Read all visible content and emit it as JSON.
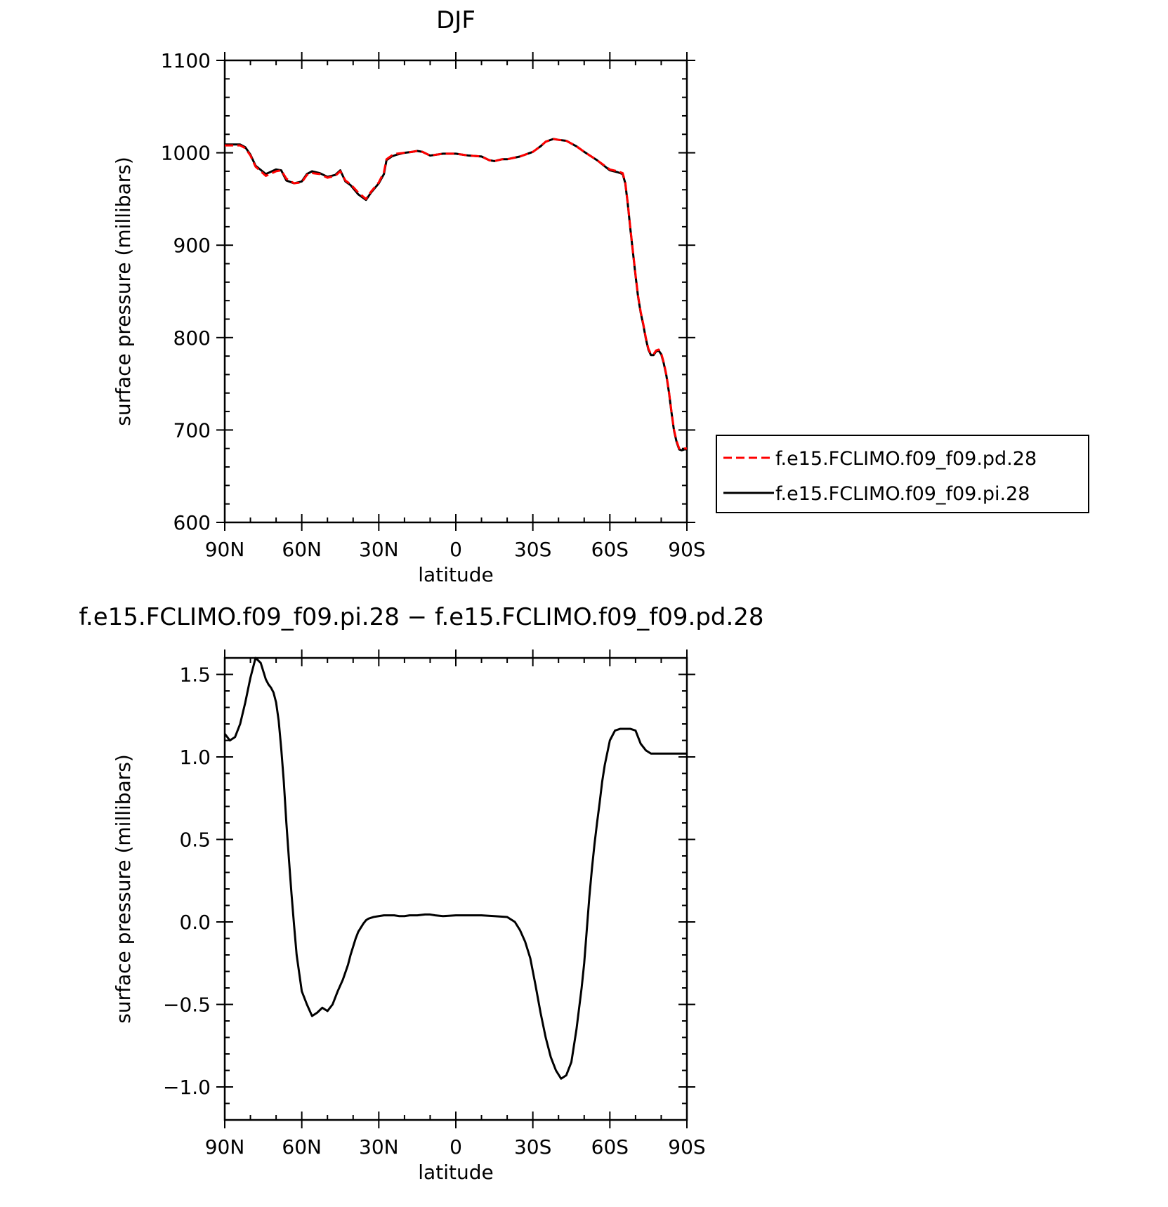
{
  "chart_data": [
    {
      "type": "line",
      "title": "DJF",
      "xlabel": "latitude",
      "ylabel": "surface pressure (millibars)",
      "xlim": [
        -90,
        90
      ],
      "ylim": [
        600,
        1100
      ],
      "xticks": [
        {
          "value": -90,
          "label": "90N"
        },
        {
          "value": -60,
          "label": "60N"
        },
        {
          "value": -30,
          "label": "30N"
        },
        {
          "value": 0,
          "label": "0"
        },
        {
          "value": 30,
          "label": "30S"
        },
        {
          "value": 60,
          "label": "60S"
        },
        {
          "value": 90,
          "label": "90S"
        }
      ],
      "yticks": [
        {
          "value": 600,
          "label": "600"
        },
        {
          "value": 700,
          "label": "700"
        },
        {
          "value": 800,
          "label": "800"
        },
        {
          "value": 900,
          "label": "900"
        },
        {
          "value": 1000,
          "label": "1000"
        },
        {
          "value": 1100,
          "label": "1100"
        }
      ],
      "legend_position": "right",
      "series": [
        {
          "name": "f.e15.FCLIMO.f09_f09.pd.28",
          "color": "#ff0000",
          "style": "dashed",
          "x": [
            -90,
            -84,
            -82,
            -80,
            -78,
            -74,
            -70,
            -68,
            -66,
            -63,
            -60,
            -58,
            -56,
            -53,
            -50,
            -47,
            -45,
            -43,
            -41,
            -38,
            -35,
            -33,
            -30,
            -28,
            -27,
            -25,
            -23,
            -20,
            -17,
            -15,
            -13,
            -10,
            -5,
            0,
            5,
            10,
            13,
            15,
            18,
            20,
            25,
            30,
            33,
            35,
            38,
            40,
            43,
            47,
            50,
            55,
            60,
            63,
            65,
            66,
            67,
            68,
            69,
            70,
            71,
            72,
            73,
            74,
            75,
            76,
            77,
            78,
            79,
            80,
            81,
            82,
            83,
            84,
            85,
            86,
            87,
            88,
            89,
            90
          ],
          "y": [
            1008,
            1008,
            1005,
            997,
            985,
            975,
            980,
            981,
            972,
            967,
            968,
            976,
            978,
            977,
            973,
            975,
            980,
            970,
            966,
            957,
            950,
            958,
            968,
            979,
            993,
            997,
            999,
            1000,
            1001,
            1002,
            1001,
            997,
            999,
            999,
            997,
            996,
            992,
            991,
            993,
            993,
            996,
            1001,
            1007,
            1012,
            1015,
            1014,
            1013,
            1007,
            1001,
            992,
            982,
            980,
            978,
            968,
            945,
            918,
            893,
            868,
            845,
            828,
            815,
            800,
            788,
            782,
            782,
            786,
            787,
            783,
            773,
            760,
            742,
            720,
            700,
            688,
            680,
            679,
            680,
            680
          ]
        },
        {
          "name": "f.e15.FCLIMO.f09_f09.pi.28",
          "color": "#000000",
          "style": "solid",
          "x": [
            -90,
            -84,
            -82,
            -80,
            -78,
            -74,
            -70,
            -68,
            -66,
            -63,
            -60,
            -58,
            -56,
            -53,
            -50,
            -47,
            -45,
            -43,
            -41,
            -38,
            -35,
            -33,
            -30,
            -28,
            -27,
            -25,
            -23,
            -20,
            -17,
            -15,
            -13,
            -10,
            -5,
            0,
            5,
            10,
            13,
            15,
            18,
            20,
            25,
            30,
            33,
            35,
            38,
            40,
            43,
            47,
            50,
            55,
            60,
            63,
            65,
            66,
            67,
            68,
            69,
            70,
            71,
            72,
            73,
            74,
            75,
            76,
            77,
            78,
            79,
            80,
            81,
            82,
            83,
            84,
            85,
            86,
            87,
            88,
            89,
            90
          ],
          "y": [
            1009,
            1009,
            1006,
            998,
            986,
            977,
            982,
            981,
            970,
            967,
            969,
            977,
            980,
            978,
            974,
            976,
            981,
            969,
            965,
            955,
            949,
            957,
            967,
            977,
            992,
            996,
            998,
            1000,
            1001,
            1002,
            1001,
            997,
            999,
            999,
            997,
            996,
            992,
            991,
            993,
            993,
            996,
            1001,
            1007,
            1012,
            1015,
            1014,
            1013,
            1007,
            1001,
            992,
            981,
            979,
            977,
            967,
            944,
            917,
            892,
            867,
            844,
            827,
            814,
            799,
            787,
            781,
            781,
            785,
            786,
            782,
            772,
            759,
            741,
            719,
            699,
            687,
            679,
            678,
            679,
            679
          ]
        }
      ]
    },
    {
      "type": "line",
      "title": "f.e15.FCLIMO.f09_f09.pi.28 − f.e15.FCLIMO.f09_f09.pd.28",
      "xlabel": "latitude",
      "ylabel": "surface pressure (millibars)",
      "xlim": [
        -90,
        90
      ],
      "ylim": [
        -1.2,
        1.6
      ],
      "xticks": [
        {
          "value": -90,
          "label": "90N"
        },
        {
          "value": -60,
          "label": "60N"
        },
        {
          "value": -30,
          "label": "30N"
        },
        {
          "value": 0,
          "label": "0"
        },
        {
          "value": 30,
          "label": "30S"
        },
        {
          "value": 60,
          "label": "60S"
        },
        {
          "value": 90,
          "label": "90S"
        }
      ],
      "yticks": [
        {
          "value": -1.0,
          "label": "−1.0"
        },
        {
          "value": -0.5,
          "label": "−0.5"
        },
        {
          "value": 0.0,
          "label": "0.0"
        },
        {
          "value": 0.5,
          "label": "0.5"
        },
        {
          "value": 1.0,
          "label": "1.0"
        },
        {
          "value": 1.5,
          "label": "1.5"
        }
      ],
      "series": [
        {
          "color": "#000000",
          "style": "solid",
          "x": [
            -90,
            -88,
            -86,
            -84,
            -82,
            -80,
            -78,
            -76,
            -74,
            -73,
            -72,
            -71,
            -70,
            -69,
            -68,
            -67,
            -66,
            -65,
            -64,
            -63,
            -62,
            -60,
            -58,
            -56,
            -54,
            -52,
            -50,
            -48,
            -46,
            -44,
            -42,
            -41,
            -40,
            -39,
            -38,
            -36,
            -35,
            -34,
            -32,
            -30,
            -28,
            -26,
            -24,
            -22,
            -20,
            -18,
            -15,
            -12,
            -10,
            -8,
            -5,
            0,
            5,
            10,
            15,
            20,
            23,
            25,
            27,
            29,
            31,
            33,
            35,
            37,
            39,
            41,
            43,
            45,
            47,
            49,
            50,
            51,
            52,
            53,
            54,
            55,
            56,
            57,
            58,
            60,
            62,
            64,
            66,
            68,
            70,
            71,
            72,
            74,
            76,
            78,
            80,
            82,
            84,
            86,
            88,
            90
          ],
          "y": [
            1.14,
            1.1,
            1.12,
            1.2,
            1.33,
            1.48,
            1.6,
            1.57,
            1.47,
            1.44,
            1.42,
            1.39,
            1.33,
            1.22,
            1.05,
            0.85,
            0.6,
            0.38,
            0.17,
            -0.02,
            -0.2,
            -0.42,
            -0.5,
            -0.57,
            -0.55,
            -0.52,
            -0.54,
            -0.5,
            -0.42,
            -0.35,
            -0.26,
            -0.2,
            -0.15,
            -0.1,
            -0.06,
            -0.01,
            0.01,
            0.02,
            0.03,
            0.035,
            0.04,
            0.04,
            0.04,
            0.035,
            0.035,
            0.04,
            0.04,
            0.045,
            0.045,
            0.04,
            0.035,
            0.04,
            0.04,
            0.04,
            0.035,
            0.03,
            0.0,
            -0.05,
            -0.12,
            -0.22,
            -0.38,
            -0.55,
            -0.7,
            -0.82,
            -0.9,
            -0.95,
            -0.93,
            -0.85,
            -0.65,
            -0.4,
            -0.25,
            -0.05,
            0.15,
            0.32,
            0.47,
            0.6,
            0.72,
            0.85,
            0.95,
            1.1,
            1.16,
            1.17,
            1.17,
            1.17,
            1.16,
            1.12,
            1.08,
            1.04,
            1.02,
            1.02,
            1.02,
            1.02,
            1.02,
            1.02,
            1.02,
            1.02
          ]
        }
      ]
    }
  ]
}
